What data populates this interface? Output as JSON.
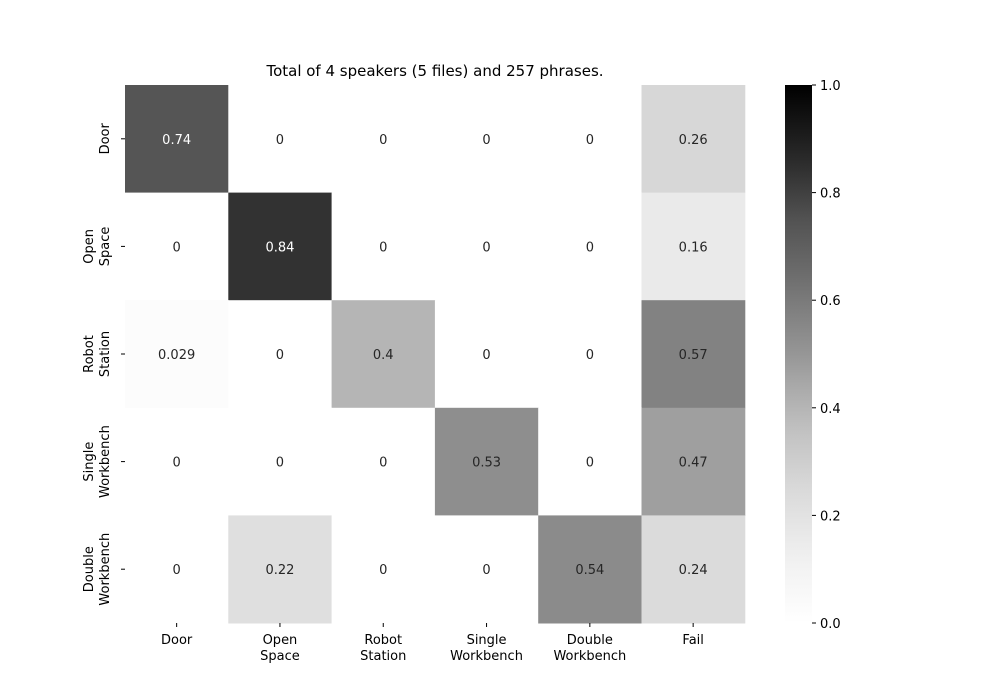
{
  "chart_data": {
    "type": "heatmap",
    "title": "Total of 4 speakers (5 files) and 257 phrases.",
    "xlabel": "",
    "ylabel": "",
    "x_categories": [
      "Door",
      "Open\nSpace",
      "Robot\nStation",
      "Single\nWorkbench",
      "Double\nWorkbench",
      "Fail"
    ],
    "y_categories": [
      "Door",
      "Open\nSpace",
      "Robot\nStation",
      "Single\nWorkbench",
      "Double\nWorkbench"
    ],
    "values": [
      [
        0.74,
        0,
        0,
        0,
        0,
        0.26
      ],
      [
        0,
        0.84,
        0,
        0,
        0,
        0.16
      ],
      [
        0.029,
        0,
        0.4,
        0,
        0,
        0.57
      ],
      [
        0,
        0,
        0,
        0.53,
        0,
        0.47
      ],
      [
        0,
        0.22,
        0,
        0,
        0.54,
        0.24
      ]
    ],
    "labels": [
      [
        "0.74",
        "0",
        "0",
        "0",
        "0",
        "0.26"
      ],
      [
        "0",
        "0.84",
        "0",
        "0",
        "0",
        "0.16"
      ],
      [
        "0.029",
        "0",
        "0.4",
        "0",
        "0",
        "0.57"
      ],
      [
        "0",
        "0",
        "0",
        "0.53",
        "0",
        "0.47"
      ],
      [
        "0",
        "0.22",
        "0",
        "0",
        "0.54",
        "0.24"
      ]
    ],
    "colormap": "Greys",
    "vmin": 0,
    "vmax": 1,
    "colorbar_ticks": [
      0.0,
      0.2,
      0.4,
      0.6,
      0.8,
      1.0
    ],
    "colorbar_tick_labels": [
      "0.0",
      "0.2",
      "0.4",
      "0.6",
      "0.8",
      "1.0"
    ]
  },
  "colors": {
    "low": "#ffffff",
    "high": "#000000",
    "text_dark": "#262626",
    "text_light": "#ffffff",
    "axis": "#000000"
  }
}
